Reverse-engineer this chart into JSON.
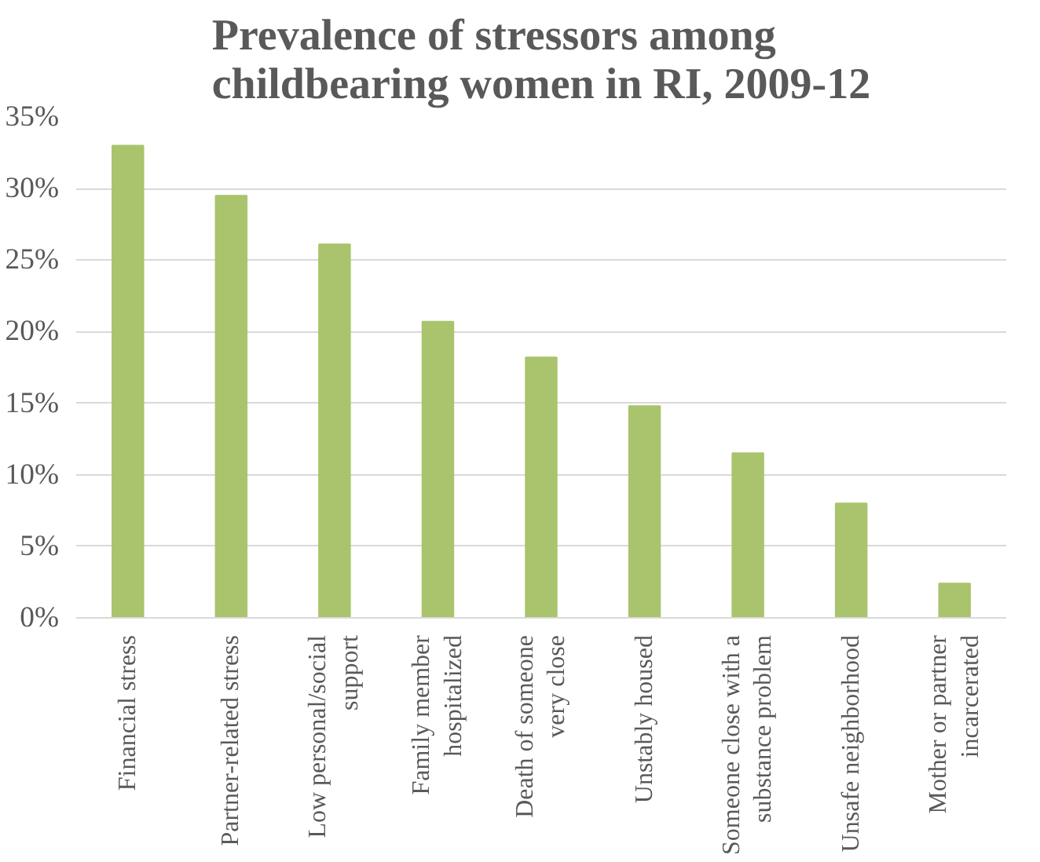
{
  "chart_data": {
    "type": "bar",
    "title": "Prevalence of stressors among\nchildbearing women in RI, 2009-12",
    "categories": [
      "Financial stress",
      "Partner-related stress",
      "Low personal/social\nsupport",
      "Family member\nhospitalized",
      "Death of someone\nvery close",
      "Unstably housed",
      "Someone close with a\nsubstance problem",
      "Unsafe neighborhood",
      "Mother or partner\nincarcerated"
    ],
    "values": [
      33.0,
      29.5,
      26.1,
      20.7,
      18.2,
      14.8,
      11.5,
      8.0,
      2.4
    ],
    "color": "#a9c46c",
    "ylim": [
      0,
      35
    ],
    "yticks": [
      {
        "value": 0,
        "label": "0%"
      },
      {
        "value": 5,
        "label": "5%"
      },
      {
        "value": 10,
        "label": "10%"
      },
      {
        "value": 15,
        "label": "15%"
      },
      {
        "value": 20,
        "label": "20%"
      },
      {
        "value": 25,
        "label": "25%"
      },
      {
        "value": 30,
        "label": "30%"
      },
      {
        "value": 35,
        "label": "35%"
      }
    ],
    "grid": "y"
  }
}
